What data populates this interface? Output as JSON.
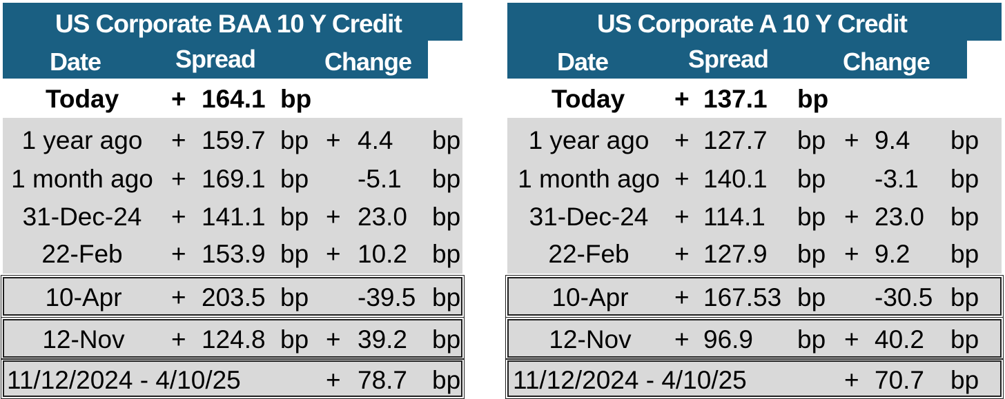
{
  "panels": [
    {
      "title": "US Corporate BAA 10 Y  Credit",
      "headers": {
        "date": "Date",
        "spread": "Spread",
        "change": "Change"
      },
      "today": {
        "label": "Today",
        "sign": "+",
        "value": "164.1",
        "unit": "bp"
      },
      "rows": [
        {
          "label": "1 year ago",
          "sign": "+",
          "value": "159.7",
          "unit": "bp",
          "chg_sign": "+",
          "chg": "4.4",
          "chg_unit": "bp"
        },
        {
          "label": "1 month ago",
          "sign": "+",
          "value": "169.1",
          "unit": "bp",
          "chg_sign": "",
          "chg": "-5.1",
          "chg_unit": "bp"
        },
        {
          "label": "31-Dec-24",
          "sign": "+",
          "value": "141.1",
          "unit": "bp",
          "chg_sign": "+",
          "chg": "23.0",
          "chg_unit": "bp"
        },
        {
          "label": "22-Feb",
          "sign": "+",
          "value": "153.9",
          "unit": "bp",
          "chg_sign": "+",
          "chg": "10.2",
          "chg_unit": "bp"
        }
      ],
      "boxed": [
        {
          "label": "10-Apr",
          "sign": "+",
          "value": "203.5",
          "unit": "bp",
          "chg_sign": "",
          "chg": "-39.5",
          "chg_unit": "bp"
        },
        {
          "label": "12-Nov",
          "sign": "+",
          "value": "124.8",
          "unit": "bp",
          "chg_sign": "+",
          "chg": "39.2",
          "chg_unit": "bp"
        }
      ],
      "range": {
        "label": "11/12/2024 - 4/10/25",
        "chg_sign": "+",
        "chg": "78.7",
        "chg_unit": "bp"
      }
    },
    {
      "title": "US Corporate A 10 Y Credit",
      "headers": {
        "date": "Date",
        "spread": "Spread",
        "change": "Change"
      },
      "today": {
        "label": "Today",
        "sign": "+",
        "value": "137.1",
        "unit": "bp"
      },
      "rows": [
        {
          "label": "1 year ago",
          "sign": "+",
          "value": "127.7",
          "unit": "bp",
          "chg_sign": "+",
          "chg": "9.4",
          "chg_unit": "bp"
        },
        {
          "label": "1 month ago",
          "sign": "+",
          "value": "140.1",
          "unit": "bp",
          "chg_sign": "",
          "chg": "-3.1",
          "chg_unit": "bp"
        },
        {
          "label": "31-Dec-24",
          "sign": "+",
          "value": "114.1",
          "unit": "bp",
          "chg_sign": "+",
          "chg": "23.0",
          "chg_unit": "bp"
        },
        {
          "label": "22-Feb",
          "sign": "+",
          "value": "127.9",
          "unit": "bp",
          "chg_sign": "+",
          "chg": "9.2",
          "chg_unit": "bp"
        }
      ],
      "boxed": [
        {
          "label": "10-Apr",
          "sign": "+",
          "value": "167.53",
          "unit": "bp",
          "chg_sign": "",
          "chg": "-30.5",
          "chg_unit": "bp"
        },
        {
          "label": "12-Nov",
          "sign": "+",
          "value": "96.9",
          "unit": "bp",
          "chg_sign": "+",
          "chg": "40.2",
          "chg_unit": "bp"
        }
      ],
      "range": {
        "label": "11/12/2024 - 4/10/25",
        "chg_sign": "+",
        "chg": "70.7",
        "chg_unit": "bp"
      }
    }
  ],
  "colors": {
    "header_bg": "#1a5f82",
    "row_bg": "#d9d9d9"
  }
}
